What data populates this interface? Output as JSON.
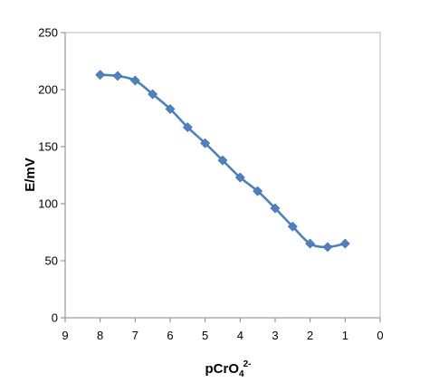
{
  "chart_data": {
    "type": "line",
    "x": [
      8,
      7.5,
      7,
      6.5,
      6,
      5.5,
      5,
      4.5,
      4,
      3.5,
      3,
      2.5,
      2,
      1.5,
      1
    ],
    "series": [
      {
        "values": [
          213,
          212,
          208,
          196,
          183,
          167,
          153,
          138,
          123,
          111,
          96,
          80,
          65,
          62,
          65
        ],
        "color": "#4F81BD",
        "marker": "diamond"
      }
    ],
    "xlabel_main": "pCrO",
    "xlabel_sub": "4",
    "xlabel_sup": "2-",
    "ylabel": "E/mV",
    "xlim": [
      9,
      0
    ],
    "ylim": [
      0,
      250
    ],
    "xticks": [
      "9",
      "8",
      "7",
      "6",
      "5",
      "4",
      "3",
      "2",
      "1",
      "0"
    ],
    "yticks": [
      "0",
      "50",
      "100",
      "150",
      "200",
      "250"
    ],
    "x_reversed": true,
    "grid": false,
    "legend": "none"
  }
}
